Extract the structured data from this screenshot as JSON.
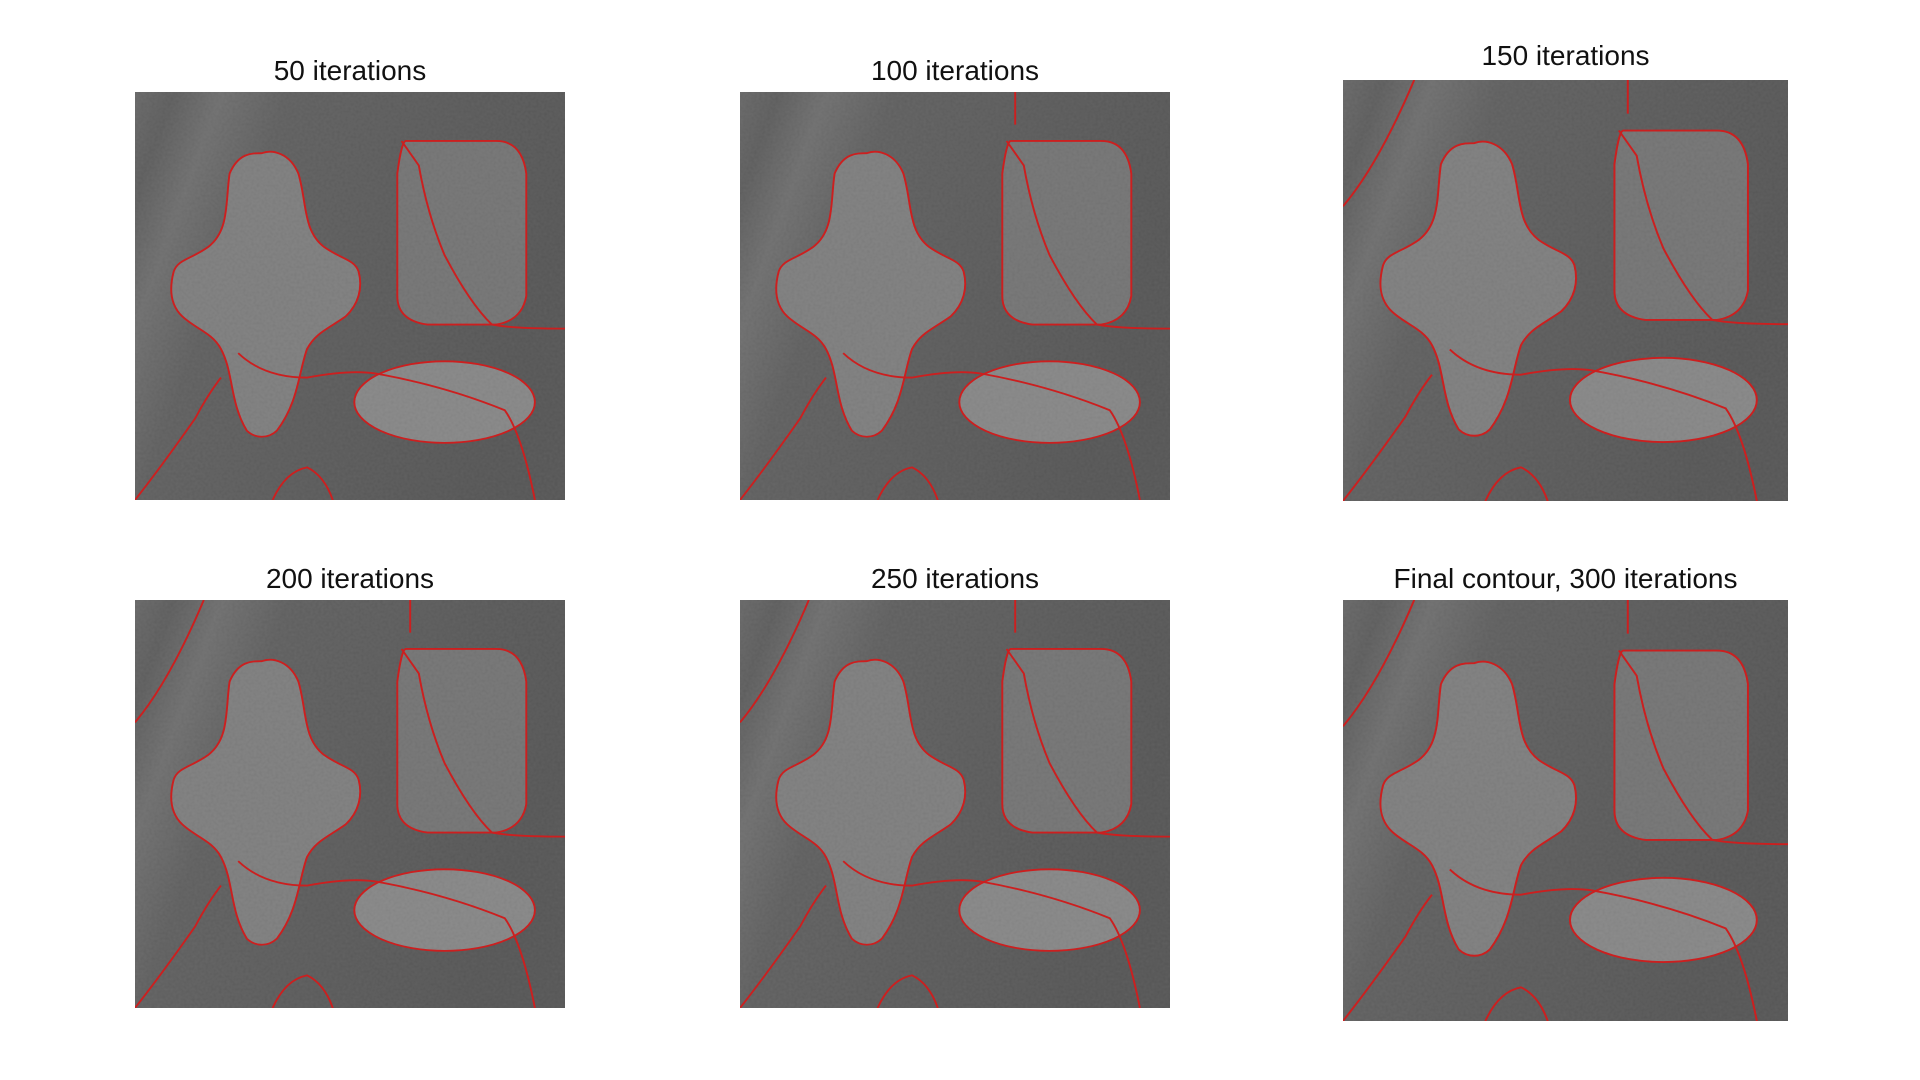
{
  "figure": {
    "panels": [
      {
        "title": "50 iterations"
      },
      {
        "title": "100 iterations"
      },
      {
        "title": "150 iterations"
      },
      {
        "title": "200 iterations"
      },
      {
        "title": "250 iterations"
      },
      {
        "title": "Final contour, 300 iterations"
      }
    ]
  },
  "colors": {
    "background": "#ffffff",
    "contour": "#cc1f1f",
    "image_dark": "#161616",
    "image_light": "#7a7a7a"
  }
}
